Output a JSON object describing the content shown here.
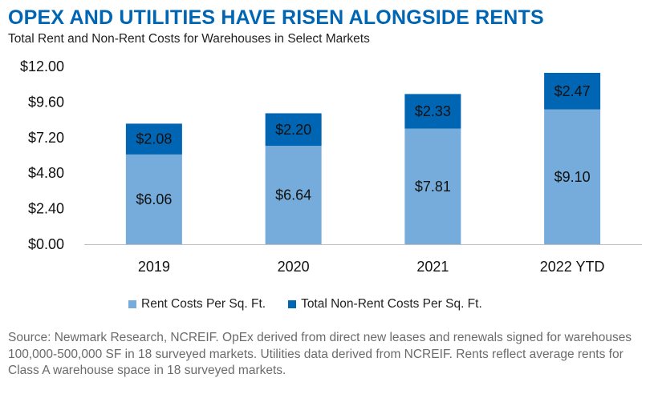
{
  "header": {
    "title": "OPEX AND UTILITIES HAVE RISEN ALONGSIDE RENTS",
    "subtitle": "Total Rent and Non-Rent Costs for Warehouses in Select Markets"
  },
  "footer": {
    "source": "Source: Newmark Research, NCREIF. OpEx derived from direct new leases and renewals signed for warehouses 100,000-500,000 SF in 18 surveyed markets. Utilities data derived from NCREIF. Rents reflect average rents for Class A warehouse space in 18 surveyed markets."
  },
  "chart_data": {
    "type": "bar",
    "stacked": true,
    "title": "OPEX AND UTILITIES HAVE RISEN ALONGSIDE RENTS",
    "subtitle": "Total Rent and Non-Rent Costs for Warehouses in Select Markets",
    "categories": [
      "2019",
      "2020",
      "2021",
      "2022 YTD"
    ],
    "series": [
      {
        "name": "Rent Costs Per Sq. Ft.",
        "values": [
          6.06,
          6.64,
          7.81,
          9.1
        ],
        "labels": [
          "$6.06",
          "$6.64",
          "$7.81",
          "$9.10"
        ],
        "color": "#76acdb"
      },
      {
        "name": "Total Non-Rent Costs Per Sq. Ft.",
        "values": [
          2.08,
          2.2,
          2.33,
          2.47
        ],
        "labels": [
          "$2.08",
          "$2.20",
          "$2.33",
          "$2.47"
        ],
        "color": "#0065b3"
      }
    ],
    "yticks": [
      0,
      2.4,
      4.8,
      7.2,
      9.6,
      12
    ],
    "ytick_labels": [
      "$0.00",
      "$2.40",
      "$4.80",
      "$7.20",
      "$9.60",
      "$12.00"
    ],
    "ylim": [
      0,
      12
    ],
    "grid": false,
    "legend_position": "bottom",
    "xlabel": "",
    "ylabel": ""
  }
}
